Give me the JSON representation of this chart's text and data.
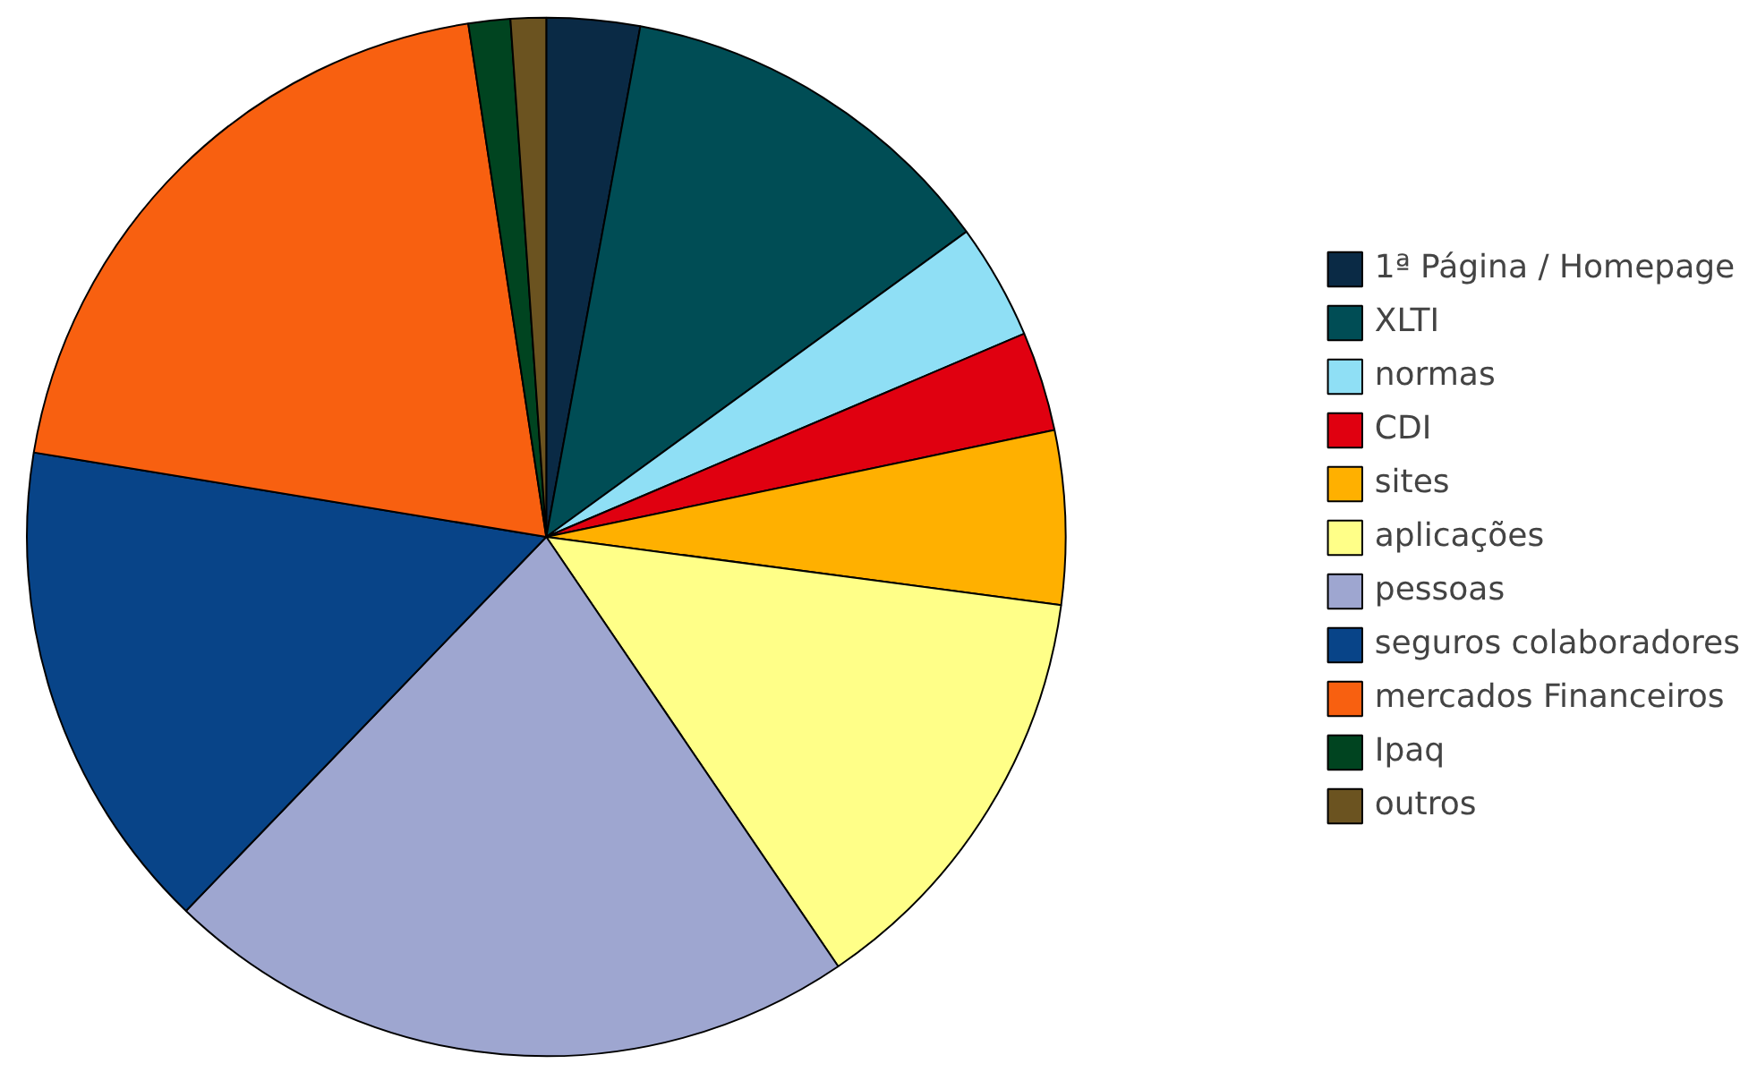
{
  "chart_data": {
    "type": "pie",
    "legend": "right",
    "categories": [
      "1ª Página / Homepage",
      "XLTI",
      "normas",
      "CDI",
      "sites",
      "aplicações",
      "pessoas",
      "seguros colaboradores",
      "mercados Financeiros",
      "Ipaq",
      "outros"
    ],
    "values": [
      2.9,
      12.1,
      3.6,
      3.1,
      5.4,
      13.4,
      21.7,
      15.4,
      20.0,
      1.3,
      1.1
    ],
    "colors": [
      "#0a2a45",
      "#004d55",
      "#8fdff5",
      "#e00010",
      "#ffb000",
      "#ffff88",
      "#9ea6d0",
      "#084488",
      "#f86010",
      "#004420",
      "#6b5320"
    ]
  }
}
